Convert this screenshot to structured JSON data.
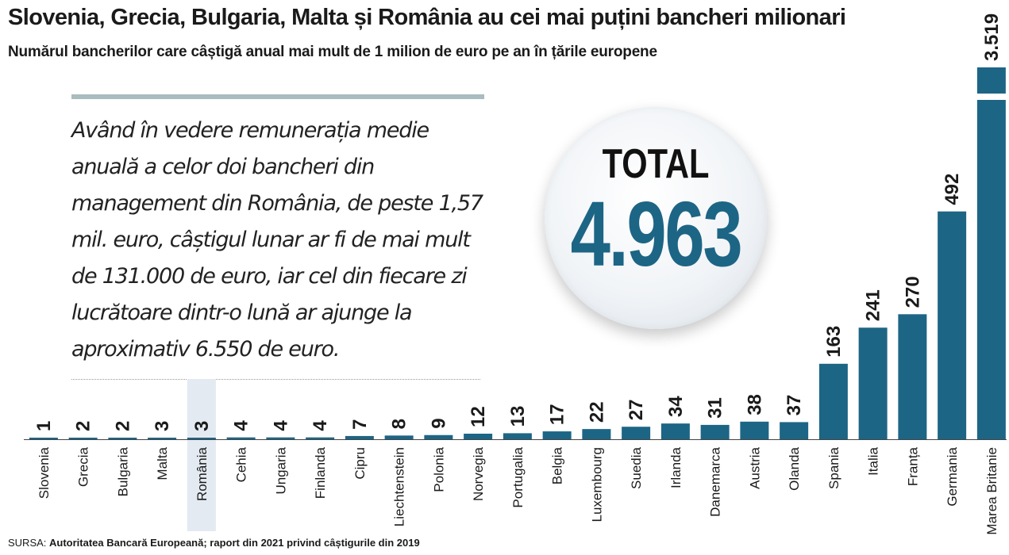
{
  "title": "Slovenia, Grecia, Bulgaria, Malta și România au cei mai puțini bancheri milionari",
  "subtitle": "Numărul bancherilor care câștigă anual mai mult de 1 milion de euro pe an în țările europene",
  "quote": "Având în vedere remunerația medie anuală a celor doi bancheri din management din România, de peste 1,57 mil. euro, câștigul lunar ar fi de mai mult de 131.000 de euro, iar cel din fiecare zi lucrătoare dintr-o lună ar ajunge la aproximativ 6.550 de euro.",
  "total": {
    "label": "TOTAL",
    "value": "4.963"
  },
  "source": {
    "prefix": "SURSA: ",
    "text": "Autoritatea Bancară Europeană; raport din 2021 privind câștigurile din 2019"
  },
  "colors": {
    "bar": "#1d6585",
    "highlight": "#e4eaf2",
    "baseline": "#444444"
  },
  "chart_data": {
    "type": "bar",
    "categories": [
      "Slovenia",
      "Grecia",
      "Bulgaria",
      "Malta",
      "România",
      "Cehia",
      "Ungaria",
      "Finlanda",
      "Cipru",
      "Liechtenstein",
      "Polonia",
      "Norvegia",
      "Portugalia",
      "Belgia",
      "Luxembourg",
      "Suedia",
      "Irlanda",
      "Danemarca",
      "Austria",
      "Olanda",
      "Spania",
      "Italia",
      "Franța",
      "Germania",
      "Marea Britanie"
    ],
    "values": [
      1,
      2,
      2,
      3,
      3,
      4,
      4,
      4,
      7,
      8,
      9,
      12,
      13,
      17,
      22,
      27,
      34,
      31,
      38,
      37,
      163,
      241,
      270,
      492,
      3519
    ],
    "value_labels": [
      "1",
      "2",
      "2",
      "3",
      "3",
      "4",
      "4",
      "4",
      "7",
      "8",
      "9",
      "12",
      "13",
      "17",
      "22",
      "27",
      "34",
      "31",
      "38",
      "37",
      "163",
      "241",
      "270",
      "492",
      "3.519"
    ],
    "highlighted_category": "România",
    "axis_break": {
      "category": "Marea Britanie"
    }
  }
}
